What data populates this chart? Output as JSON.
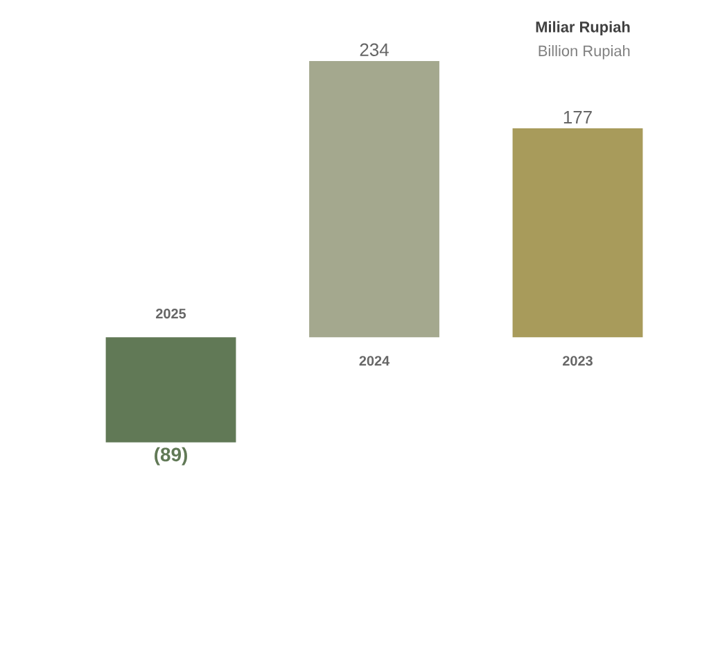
{
  "chart_data": {
    "type": "bar",
    "title": "Miliar Rupiah",
    "subtitle": "Billion Rupiah",
    "categories": [
      "2025",
      "2024",
      "2023"
    ],
    "values": [
      -89,
      234,
      177
    ],
    "colors": [
      "#617956",
      "#a4a88e",
      "#a89b5b"
    ],
    "value_labels": [
      "(89)",
      "234",
      "177"
    ]
  }
}
